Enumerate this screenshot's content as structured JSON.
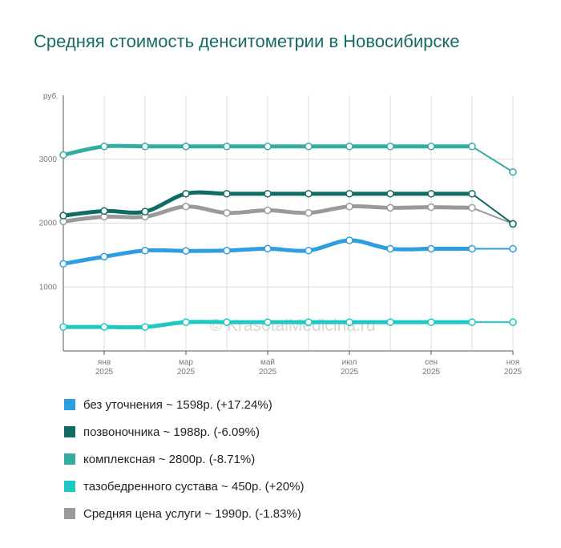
{
  "title": "Средняя стоимость денситометрии в Новосибирске",
  "watermark": "© KrasotaiMedicina.ru",
  "chart_data": {
    "type": "line",
    "title": "Средняя стоимость денситометрии в Новосибирске",
    "ylabel": "руб.",
    "ylim": [
      0,
      4000
    ],
    "yticks": [
      1000,
      2000,
      3000
    ],
    "grid": true,
    "x": [
      "2024-12",
      "2025-01",
      "2025-02",
      "2025-03",
      "2025-04",
      "2025-05",
      "2025-06",
      "2025-07",
      "2025-08",
      "2025-09",
      "2025-10",
      "2025-11"
    ],
    "xtick_labels": [
      {
        "month": "янв",
        "year": "2025",
        "index": 1
      },
      {
        "month": "мар",
        "year": "2025",
        "index": 3
      },
      {
        "month": "май",
        "year": "2025",
        "index": 5
      },
      {
        "month": "июл",
        "year": "2025",
        "index": 7
      },
      {
        "month": "сен",
        "year": "2025",
        "index": 9
      },
      {
        "month": "ноя",
        "year": "2025",
        "index": 11
      }
    ],
    "series": [
      {
        "name": "без уточнения",
        "legend": "без уточнения ~ 1598р. (+17.24%)",
        "color": "#2f9ee0",
        "values": [
          1363,
          1475,
          1570,
          1565,
          1570,
          1600,
          1570,
          1730,
          1598,
          1598,
          1598,
          1598
        ]
      },
      {
        "name": "позвоночника",
        "legend": "позвоночника ~ 1988р. (-6.09%)",
        "color": "#0f6b63",
        "values": [
          2117,
          2190,
          2180,
          2460,
          2460,
          2460,
          2460,
          2460,
          2460,
          2460,
          2460,
          1988
        ]
      },
      {
        "name": "комплексная",
        "legend": "комплексная ~ 2800р. (-8.71%)",
        "color": "#36aba2",
        "values": [
          3067,
          3200,
          3200,
          3200,
          3200,
          3200,
          3200,
          3200,
          3200,
          3200,
          3200,
          2800
        ]
      },
      {
        "name": "тазобедренного сустава",
        "legend": "тазобедренного сустава ~ 450р. (+20%)",
        "color": "#1ec9c2",
        "values": [
          375,
          375,
          375,
          450,
          450,
          450,
          450,
          450,
          450,
          450,
          450,
          450
        ]
      },
      {
        "name": "Средняя цена услуги",
        "legend": "Средняя цена услуги ~ 1990р. (-1.83%)",
        "color": "#9a9a9a",
        "values": [
          2027,
          2100,
          2100,
          2260,
          2160,
          2200,
          2160,
          2260,
          2240,
          2250,
          2240,
          1990
        ]
      }
    ]
  }
}
